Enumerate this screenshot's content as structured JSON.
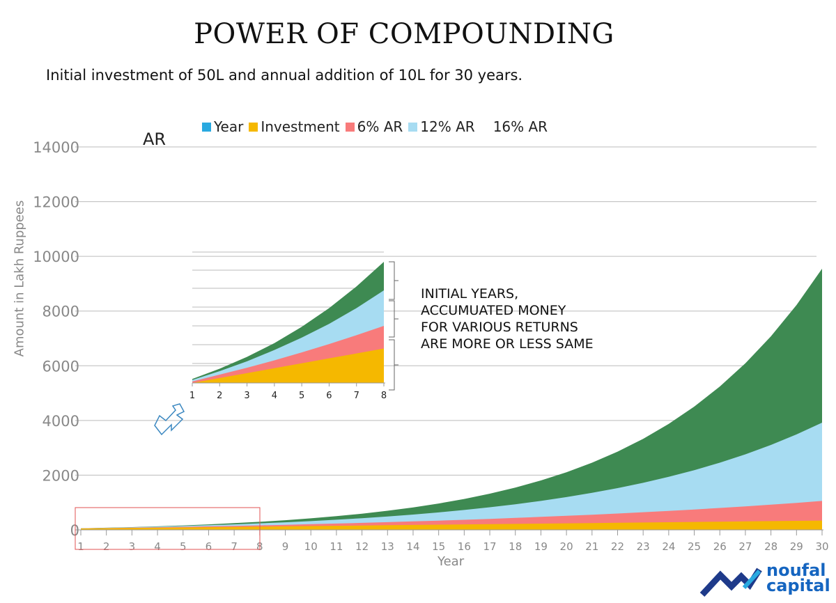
{
  "title": "POWER OF COMPOUNDING",
  "subtitle": "Initial investment of 50L and annual addition of 10L for 30 years.",
  "legend": [
    {
      "label": "Year",
      "color": "#29a9e0"
    },
    {
      "label": "Investment",
      "color": "#f5b800"
    },
    {
      "label": "6% AR",
      "color": "#f87b7b"
    },
    {
      "label": "12% AR",
      "color": "#a7dcf2"
    },
    {
      "label": "16% AR",
      "color": ""
    }
  ],
  "stray_label": "AR",
  "ylabel": "Amount in Lakh Ruppees",
  "xlabel": "Year",
  "note": "INITIAL YEARS, ACCUMUATED MONEY FOR VARIOUS RETURNS ARE MORE OR LESS SAME",
  "logo": {
    "line1": "noufal",
    "line2": "capital"
  },
  "colors": {
    "investment": "#f5b800",
    "r6": "#f87b7b",
    "r12": "#a7dcf2",
    "r16": "#3e8a52",
    "grid": "#bbbbbb",
    "highlight": "#e05050",
    "arrow": "#3a87c0"
  },
  "chart_data": {
    "type": "area",
    "x": [
      1,
      2,
      3,
      4,
      5,
      6,
      7,
      8,
      9,
      10,
      11,
      12,
      13,
      14,
      15,
      16,
      17,
      18,
      19,
      20,
      21,
      22,
      23,
      24,
      25,
      26,
      27,
      28,
      29,
      30
    ],
    "yticks": [
      0,
      2000,
      4000,
      6000,
      8000,
      10000,
      12000,
      14000
    ],
    "ylim": [
      0,
      14000
    ],
    "series": [
      {
        "name": "Investment",
        "values": [
          50,
          60,
          70,
          80,
          90,
          100,
          110,
          120,
          130,
          140,
          150,
          160,
          170,
          180,
          190,
          200,
          210,
          220,
          230,
          240,
          250,
          260,
          270,
          280,
          290,
          300,
          310,
          320,
          330,
          340
        ]
      },
      {
        "name": "6% AR",
        "values": [
          53,
          67,
          81,
          96,
          112,
          129,
          147,
          166,
          187,
          209,
          232,
          256,
          282,
          310,
          339,
          370,
          403,
          438,
          475,
          514,
          555,
          599,
          646,
          695,
          747,
          802,
          861,
          923,
          988,
          1058
        ]
      },
      {
        "name": "12% AR",
        "values": [
          56,
          74,
          94,
          117,
          142,
          170,
          202,
          238,
          278,
          322,
          372,
          428,
          490,
          561,
          639,
          727,
          826,
          936,
          1060,
          1198,
          1354,
          1527,
          1722,
          1940,
          2184,
          2457,
          2763,
          3106,
          3490,
          3920
        ]
      },
      {
        "name": "16% AR",
        "values": [
          58,
          79,
          103,
          131,
          164,
          202,
          246,
          296,
          355,
          423,
          502,
          593,
          699,
          822,
          965,
          1131,
          1323,
          1547,
          1806,
          2107,
          2456,
          2861,
          3330,
          3875,
          4507,
          5240,
          6090,
          7076,
          8220,
          9547
        ]
      }
    ]
  },
  "inset": {
    "x": [
      1,
      2,
      3,
      4,
      5,
      6,
      7,
      8
    ]
  }
}
